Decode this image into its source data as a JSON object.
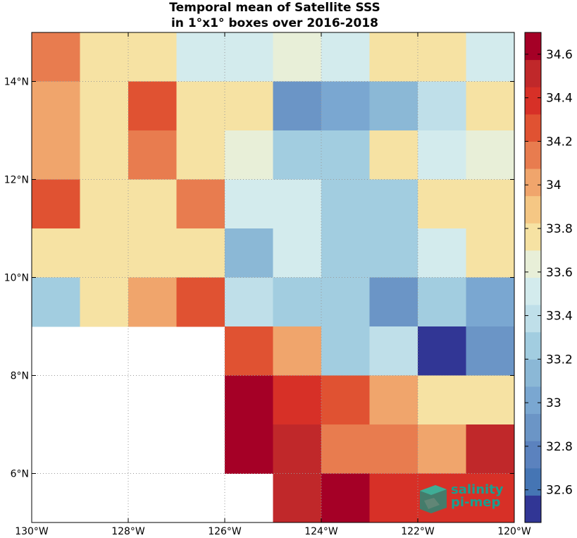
{
  "chart_data": {
    "type": "heatmap",
    "title_lines": [
      "Temporal mean of Satellite SSS",
      "in 1°x1° boxes over 2016-2018"
    ],
    "x_ticks": [
      "130°W",
      "128°W",
      "126°W",
      "124°W",
      "122°W",
      "120°W"
    ],
    "y_ticks": [
      "14°N",
      "12°N",
      "10°N",
      "8°N",
      "6°N"
    ],
    "lon_range": [
      -130,
      -120
    ],
    "lat_range": [
      5,
      15
    ],
    "grid": "dotted",
    "colorbar": {
      "range": [
        32.45,
        34.7
      ],
      "ticks": [
        "34.6",
        "34.4",
        "34.2",
        "34",
        "33.8",
        "33.6",
        "33.4",
        "33.2",
        "33",
        "32.8",
        "32.6"
      ],
      "tick_values": [
        34.6,
        34.4,
        34.2,
        34.0,
        33.8,
        33.6,
        33.4,
        33.2,
        33.0,
        32.8,
        32.6
      ]
    },
    "rows_lat_top_to_bottom": [
      15,
      14,
      13,
      12,
      11,
      10,
      9,
      8,
      7,
      6
    ],
    "columns_lon_left_to_right": [
      -130,
      -129,
      -128,
      -127,
      -126,
      -125,
      -124,
      -123,
      -122,
      -121
    ],
    "values": [
      [
        34.1,
        33.8,
        33.8,
        33.5,
        33.5,
        33.6,
        33.5,
        33.8,
        33.8,
        33.5
      ],
      [
        34.0,
        33.7,
        34.2,
        33.7,
        33.8,
        32.9,
        33.0,
        33.1,
        33.4,
        33.8
      ],
      [
        34.0,
        33.8,
        34.1,
        33.8,
        33.6,
        33.3,
        33.2,
        33.7,
        33.5,
        33.6
      ],
      [
        34.2,
        33.8,
        33.7,
        34.1,
        33.5,
        33.5,
        33.3,
        33.3,
        33.7,
        33.7
      ],
      [
        33.8,
        33.7,
        33.7,
        33.8,
        33.1,
        33.5,
        33.2,
        33.2,
        33.5,
        33.7
      ],
      [
        33.2,
        33.8,
        34.0,
        34.2,
        33.4,
        33.3,
        33.3,
        32.9,
        33.3,
        33.0
      ],
      [
        null,
        null,
        null,
        null,
        34.2,
        34.0,
        33.3,
        33.4,
        32.5,
        32.9
      ],
      [
        null,
        null,
        null,
        null,
        34.7,
        34.4,
        34.2,
        34.0,
        33.7,
        33.7
      ],
      [
        null,
        null,
        null,
        null,
        34.7,
        34.5,
        34.1,
        34.1,
        34.0,
        34.5
      ],
      [
        null,
        null,
        null,
        null,
        null,
        34.5,
        34.7,
        34.4,
        34.4,
        34.4
      ]
    ]
  },
  "logo": {
    "line1": "salinity",
    "line2": "pi-mep"
  },
  "colors": {
    "scale": [
      "#313695",
      "#4575b4",
      "#5b82be",
      "#6b95c6",
      "#7aa7d1",
      "#8bb8d6",
      "#a2cde0",
      "#bfdfe9",
      "#d3ebed",
      "#e8efd8",
      "#f6e2a3",
      "#f5c784",
      "#f0a56c",
      "#e87c4f",
      "#e05232",
      "#d73027",
      "#c0282a",
      "#a50026"
    ],
    "logo": "#1a9e8f"
  }
}
